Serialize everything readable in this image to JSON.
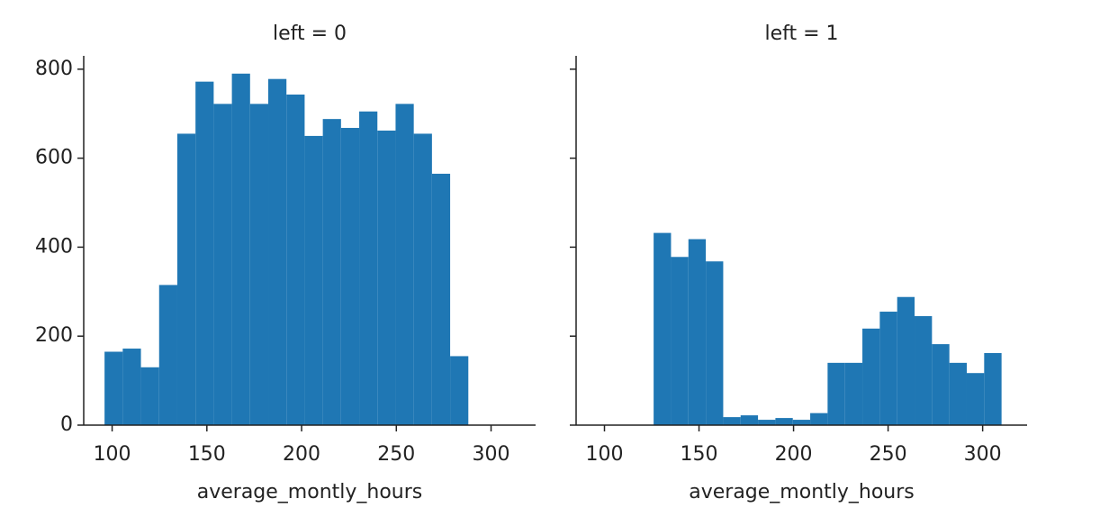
{
  "chart_data": [
    {
      "type": "histogram",
      "title": "left = 0",
      "x_label": "average_montly_hours",
      "color": "#1f77b4",
      "bins": [
        96,
        105.6,
        115.2,
        124.8,
        134.4,
        144,
        153.6,
        163.2,
        172.8,
        182.4,
        192,
        201.6,
        211.2,
        220.8,
        230.4,
        240,
        249.6,
        259.2,
        268.8,
        278.4,
        288
      ],
      "values": [
        165,
        172,
        130,
        315,
        655,
        772,
        722,
        790,
        722,
        778,
        743,
        650,
        688,
        668,
        705,
        662,
        722,
        655,
        565,
        155
      ],
      "xlim": [
        85,
        323.5
      ],
      "xticks": [
        100,
        150,
        200,
        250,
        300
      ],
      "ylim": [
        0,
        830
      ],
      "yticks": [
        0,
        200,
        400,
        600,
        800
      ]
    },
    {
      "type": "histogram",
      "title": "left = 1",
      "x_label": "average_montly_hours",
      "color": "#1f77b4",
      "bins": [
        126,
        135.2,
        144.4,
        153.6,
        162.8,
        172,
        181.2,
        190.4,
        199.6,
        208.8,
        218,
        227.2,
        236.4,
        245.6,
        254.8,
        264,
        273.2,
        282.4,
        291.6,
        300.8,
        310
      ],
      "values": [
        432,
        378,
        418,
        368,
        18,
        22,
        12,
        16,
        12,
        27,
        140,
        140,
        217,
        255,
        288,
        245,
        182,
        140,
        117,
        162
      ],
      "xlim": [
        85,
        323.5
      ],
      "xticks": [
        100,
        150,
        200,
        250,
        300
      ],
      "ylim": [
        0,
        830
      ]
    }
  ]
}
